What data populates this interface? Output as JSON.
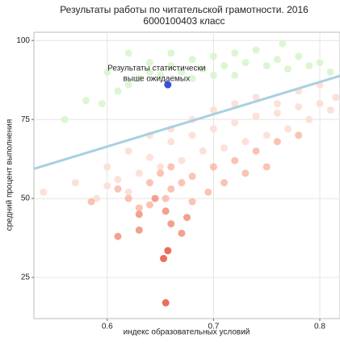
{
  "chart_data": {
    "type": "scatter",
    "title": "Результаты работы по читательской грамотности. 2016",
    "subtitle": "6000100403 класс",
    "x_label": "индекс образовательных условий",
    "y_label": "средний процент выполнения",
    "xlim": [
      0.531,
      0.819
    ],
    "ylim": [
      12,
      102.6
    ],
    "xticks": [
      0.6,
      0.7,
      0.8
    ],
    "yticks": [
      25,
      50,
      75,
      100
    ],
    "grid": true,
    "series": [
      {
        "color": "#d6f5cc",
        "x": [
          0.62,
          0.64,
          0.66,
          0.68,
          0.7,
          0.72,
          0.74,
          0.765,
          0.78,
          0.8,
          0.6,
          0.58,
          0.595,
          0.63,
          0.65,
          0.67,
          0.69,
          0.71,
          0.73,
          0.75,
          0.77,
          0.79,
          0.81,
          0.62,
          0.64,
          0.7,
          0.68,
          0.72,
          0.76,
          0.66,
          0.61,
          0.56
        ],
        "values": [
          96,
          93,
          92,
          94,
          95,
          96,
          97,
          99,
          95,
          93,
          90,
          81,
          80,
          88,
          89,
          90,
          91,
          92,
          93,
          92,
          91,
          92,
          90,
          86,
          90,
          89,
          88,
          89,
          94,
          96,
          84,
          75
        ]
      },
      {
        "color": "#fddcd2",
        "x": [
          0.54,
          0.57,
          0.59,
          0.6,
          0.62,
          0.64,
          0.66,
          0.68,
          0.7,
          0.72,
          0.74,
          0.76,
          0.78,
          0.8,
          0.81,
          0.79,
          0.77,
          0.75,
          0.73,
          0.71,
          0.69,
          0.67,
          0.65,
          0.63,
          0.61,
          0.6,
          0.62,
          0.64,
          0.66,
          0.68,
          0.7,
          0.72,
          0.74,
          0.76,
          0.78,
          0.8,
          0.815
        ],
        "values": [
          52,
          55,
          50,
          60,
          65,
          70,
          72,
          75,
          78,
          80,
          82,
          80,
          84,
          86,
          78,
          75,
          72,
          70,
          68,
          66,
          65,
          62,
          60,
          58,
          56,
          54,
          52,
          63,
          68,
          70,
          72,
          74,
          76,
          77,
          79,
          80,
          82
        ]
      },
      {
        "color": "#f9b9a6",
        "x": [
          0.62,
          0.64,
          0.65,
          0.66,
          0.67,
          0.68,
          0.7,
          0.72,
          0.74,
          0.76,
          0.78,
          0.695,
          0.71,
          0.73,
          0.75,
          0.655,
          0.64,
          0.66,
          0.63,
          0.68,
          0.585,
          0.61
        ],
        "values": [
          50,
          55,
          58,
          60,
          55,
          57,
          60,
          62,
          65,
          68,
          70,
          52,
          55,
          58,
          60,
          50,
          48,
          53,
          47,
          49,
          49,
          53
        ]
      },
      {
        "color": "#f0907a",
        "x": [
          0.63,
          0.655,
          0.675,
          0.66,
          0.63,
          0.61,
          0.67,
          0.645
        ],
        "values": [
          45,
          46,
          44,
          42,
          40,
          38,
          39,
          50
        ]
      },
      {
        "color": "#e8553e",
        "x": [
          0.657,
          0.653,
          0.655
        ],
        "values": [
          33.5,
          31,
          17
        ]
      },
      {
        "color": "#1534d6",
        "x": [
          0.657
        ],
        "values": [
          86
        ]
      }
    ],
    "trend_line": {
      "color": "#a8d0e0",
      "x": [
        0.531,
        0.819
      ],
      "values": [
        59.4,
        88.8
      ]
    },
    "annotation": [
      "Результаты статистически",
      "выше ожидаемых"
    ]
  }
}
